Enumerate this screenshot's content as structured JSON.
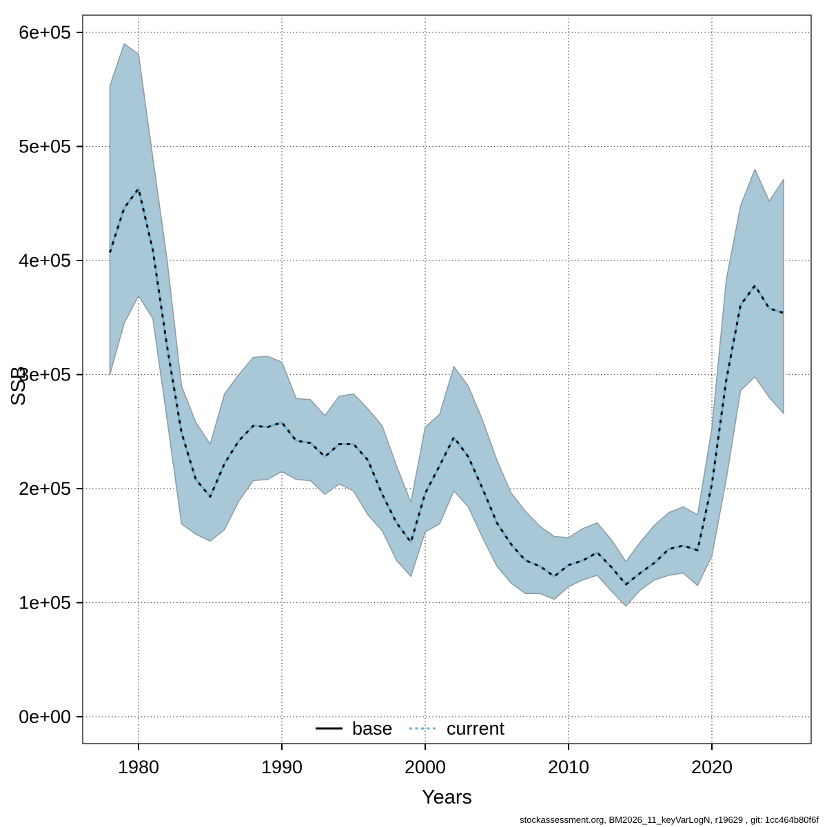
{
  "footer": {
    "text": "stockassessment.org, BM2026_11_keyVarLogN, r19629 , git: 1cc464b80f6f"
  },
  "legend": {
    "items": [
      {
        "label": "base",
        "style": "solid",
        "color": "#000000"
      },
      {
        "label": "current",
        "style": "dotted",
        "color": "#74b2d4"
      }
    ]
  },
  "colors": {
    "band_fill": "#a8c7d7",
    "band_edge": "#8c9ba3",
    "current_line_blue": "#74b2d4",
    "current_dash_dark": "#0c0c0c",
    "gridline": "#3c3c3c",
    "plot_border": "#656565",
    "tick": "#000000"
  },
  "axes": {
    "x": {
      "label": "Years",
      "tick_labels": [
        "1980",
        "1990",
        "2000",
        "2010",
        "2020"
      ],
      "tick_values": [
        1980,
        1990,
        2000,
        2010,
        2020
      ],
      "range": [
        1976.1,
        2026.9
      ]
    },
    "y": {
      "label": "SSB",
      "tick_labels": [
        "0e+00",
        "1e+05",
        "2e+05",
        "3e+05",
        "4e+05",
        "5e+05",
        "6e+05"
      ],
      "tick_values": [
        0,
        100000,
        200000,
        300000,
        400000,
        500000,
        600000
      ],
      "range": [
        -24000,
        619000
      ]
    }
  },
  "chart_data": {
    "type": "line",
    "title": "",
    "xlabel": "Years",
    "ylabel": "SSB",
    "legend_position": "bottom-center-inside",
    "grid": "dotted-at-ticks",
    "xlim": [
      1976.1,
      2026.9
    ],
    "ylim": [
      -24000,
      619000
    ],
    "x": [
      1978,
      1979,
      1980,
      1981,
      1982,
      1983,
      1984,
      1985,
      1986,
      1987,
      1988,
      1989,
      1990,
      1991,
      1992,
      1993,
      1994,
      1995,
      1996,
      1997,
      1998,
      1999,
      2000,
      2001,
      2002,
      2003,
      2004,
      2005,
      2006,
      2007,
      2008,
      2009,
      2010,
      2011,
      2012,
      2013,
      2014,
      2015,
      2016,
      2017,
      2018,
      2019,
      2020,
      2021,
      2022,
      2023,
      2024,
      2025
    ],
    "series": [
      {
        "name": "current (median SSB)",
        "role": "median",
        "values": [
          407000,
          446000,
          463000,
          409000,
          324000,
          249000,
          208000,
          193000,
          222000,
          242000,
          255000,
          254000,
          258000,
          242000,
          240000,
          228000,
          239000,
          239000,
          225000,
          195000,
          170000,
          153000,
          196000,
          220000,
          245000,
          228000,
          200000,
          170000,
          151000,
          137000,
          132000,
          123000,
          133000,
          137000,
          144000,
          131000,
          116000,
          126000,
          135000,
          147000,
          150000,
          146000,
          204000,
          295000,
          361000,
          378000,
          358000,
          354000
        ]
      },
      {
        "name": "current lower CI",
        "role": "band-lower",
        "values": [
          300000,
          345000,
          369000,
          349000,
          260000,
          169000,
          160000,
          154000,
          164000,
          189000,
          207000,
          208000,
          215000,
          208000,
          207000,
          195000,
          204000,
          198000,
          177000,
          163000,
          137000,
          123000,
          162000,
          169000,
          198000,
          184000,
          157000,
          132000,
          117000,
          108000,
          108000,
          103000,
          114000,
          120000,
          124000,
          110000,
          97000,
          111000,
          120000,
          124000,
          126000,
          115000,
          141000,
          208000,
          286000,
          298000,
          280000,
          266000
        ]
      },
      {
        "name": "current upper CI",
        "role": "band-upper",
        "values": [
          553000,
          590000,
          581000,
          490000,
          400000,
          290000,
          258000,
          239000,
          283000,
          300000,
          315000,
          316000,
          311000,
          279000,
          278000,
          264000,
          281000,
          283000,
          270000,
          255000,
          220000,
          188000,
          254000,
          265000,
          307000,
          290000,
          260000,
          225000,
          196000,
          180000,
          167000,
          158000,
          157000,
          165000,
          170000,
          155000,
          136000,
          153000,
          168000,
          179000,
          184000,
          177000,
          253000,
          383000,
          448000,
          480000,
          452000,
          471000
        ]
      }
    ]
  }
}
